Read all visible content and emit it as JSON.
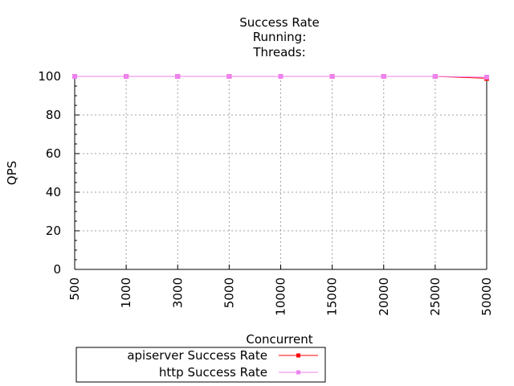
{
  "chart_data": {
    "type": "line",
    "title": [
      "Success Rate",
      "Running:",
      "Threads:"
    ],
    "xlabel": "Concurrent",
    "ylabel": "QPS",
    "categories": [
      "500",
      "1000",
      "3000",
      "5000",
      "10000",
      "15000",
      "20000",
      "25000",
      "50000"
    ],
    "ylim": [
      0,
      100
    ],
    "yticks": [
      0,
      20,
      40,
      60,
      80,
      100
    ],
    "grid": true,
    "legend_position": "bottom-left, below chart",
    "series": [
      {
        "name": "apiserver Success Rate",
        "color": "#ff0000",
        "values": [
          100,
          100,
          100,
          100,
          100,
          100,
          100,
          100,
          99.0
        ]
      },
      {
        "name": "http Success Rate",
        "color": "#ee82ee",
        "values": [
          100,
          100,
          100,
          100,
          100,
          100,
          100,
          100,
          99.6
        ]
      }
    ]
  }
}
